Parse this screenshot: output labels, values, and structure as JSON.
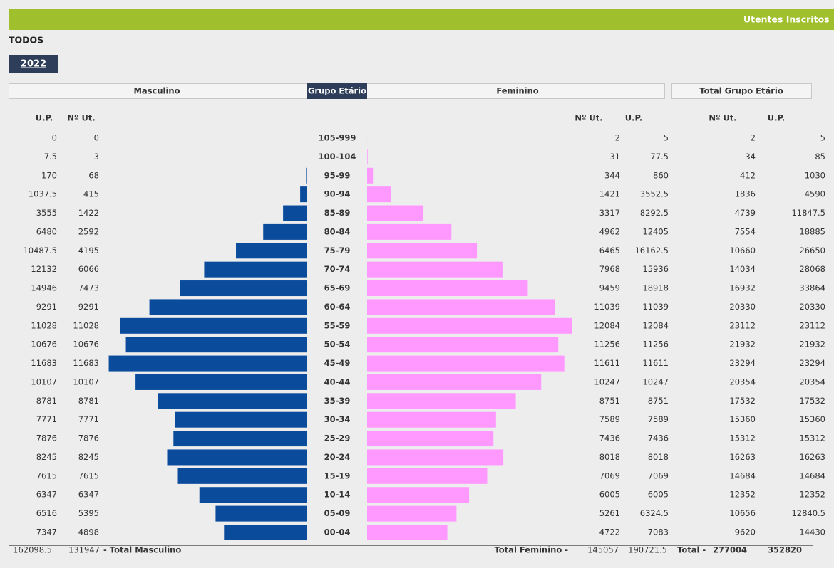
{
  "header": {
    "title": "Utentes Inscritos"
  },
  "filter": "TODOS",
  "year": "2022",
  "sections": {
    "male": "Masculino",
    "group": "Grupo Etário",
    "female": "Feminino",
    "total": "Total Grupo Etário"
  },
  "columns": {
    "up": "U.P.",
    "n": "Nº Ut."
  },
  "rows": [
    {
      "group": "105-999",
      "male_up": 0,
      "male_n": 0,
      "female_n": 2,
      "female_up": 5,
      "total_n": 2,
      "total_up": 5
    },
    {
      "group": "100-104",
      "male_up": 7.5,
      "male_n": 3,
      "female_n": 31,
      "female_up": 77.5,
      "total_n": 34,
      "total_up": 85
    },
    {
      "group": "95-99",
      "male_up": 170,
      "male_n": 68,
      "female_n": 344,
      "female_up": 860,
      "total_n": 412,
      "total_up": 1030
    },
    {
      "group": "90-94",
      "male_up": 1037.5,
      "male_n": 415,
      "female_n": 1421,
      "female_up": 3552.5,
      "total_n": 1836,
      "total_up": 4590
    },
    {
      "group": "85-89",
      "male_up": 3555,
      "male_n": 1422,
      "female_n": 3317,
      "female_up": 8292.5,
      "total_n": 4739,
      "total_up": 11847.5
    },
    {
      "group": "80-84",
      "male_up": 6480,
      "male_n": 2592,
      "female_n": 4962,
      "female_up": 12405,
      "total_n": 7554,
      "total_up": 18885
    },
    {
      "group": "75-79",
      "male_up": 10487.5,
      "male_n": 4195,
      "female_n": 6465,
      "female_up": 16162.5,
      "total_n": 10660,
      "total_up": 26650
    },
    {
      "group": "70-74",
      "male_up": 12132,
      "male_n": 6066,
      "female_n": 7968,
      "female_up": 15936,
      "total_n": 14034,
      "total_up": 28068
    },
    {
      "group": "65-69",
      "male_up": 14946,
      "male_n": 7473,
      "female_n": 9459,
      "female_up": 18918,
      "total_n": 16932,
      "total_up": 33864
    },
    {
      "group": "60-64",
      "male_up": 9291,
      "male_n": 9291,
      "female_n": 11039,
      "female_up": 11039,
      "total_n": 20330,
      "total_up": 20330
    },
    {
      "group": "55-59",
      "male_up": 11028,
      "male_n": 11028,
      "female_n": 12084,
      "female_up": 12084,
      "total_n": 23112,
      "total_up": 23112
    },
    {
      "group": "50-54",
      "male_up": 10676,
      "male_n": 10676,
      "female_n": 11256,
      "female_up": 11256,
      "total_n": 21932,
      "total_up": 21932
    },
    {
      "group": "45-49",
      "male_up": 11683,
      "male_n": 11683,
      "female_n": 11611,
      "female_up": 11611,
      "total_n": 23294,
      "total_up": 23294
    },
    {
      "group": "40-44",
      "male_up": 10107,
      "male_n": 10107,
      "female_n": 10247,
      "female_up": 10247,
      "total_n": 20354,
      "total_up": 20354
    },
    {
      "group": "35-39",
      "male_up": 8781,
      "male_n": 8781,
      "female_n": 8751,
      "female_up": 8751,
      "total_n": 17532,
      "total_up": 17532
    },
    {
      "group": "30-34",
      "male_up": 7771,
      "male_n": 7771,
      "female_n": 7589,
      "female_up": 7589,
      "total_n": 15360,
      "total_up": 15360
    },
    {
      "group": "25-29",
      "male_up": 7876,
      "male_n": 7876,
      "female_n": 7436,
      "female_up": 7436,
      "total_n": 15312,
      "total_up": 15312
    },
    {
      "group": "20-24",
      "male_up": 8245,
      "male_n": 8245,
      "female_n": 8018,
      "female_up": 8018,
      "total_n": 16263,
      "total_up": 16263
    },
    {
      "group": "15-19",
      "male_up": 7615,
      "male_n": 7615,
      "female_n": 7069,
      "female_up": 7069,
      "total_n": 14684,
      "total_up": 14684
    },
    {
      "group": "10-14",
      "male_up": 6347,
      "male_n": 6347,
      "female_n": 6005,
      "female_up": 6005,
      "total_n": 12352,
      "total_up": 12352
    },
    {
      "group": "05-09",
      "male_up": 6516,
      "male_n": 5395,
      "female_n": 5261,
      "female_up": 6324.5,
      "total_n": 10656,
      "total_up": 12840.5
    },
    {
      "group": "00-04",
      "male_up": 7347,
      "male_n": 4898,
      "female_n": 4722,
      "female_up": 7083,
      "total_n": 9620,
      "total_up": 14430
    }
  ],
  "totals": {
    "male_up": 162098.5,
    "male_n": 131947,
    "male_label": "- Total Masculino",
    "female_label": "Total Feminino -",
    "female_n": 145057,
    "female_up": 190721.5,
    "total_label": "Total -",
    "total_n": 277004,
    "total_up": 352820
  }
}
